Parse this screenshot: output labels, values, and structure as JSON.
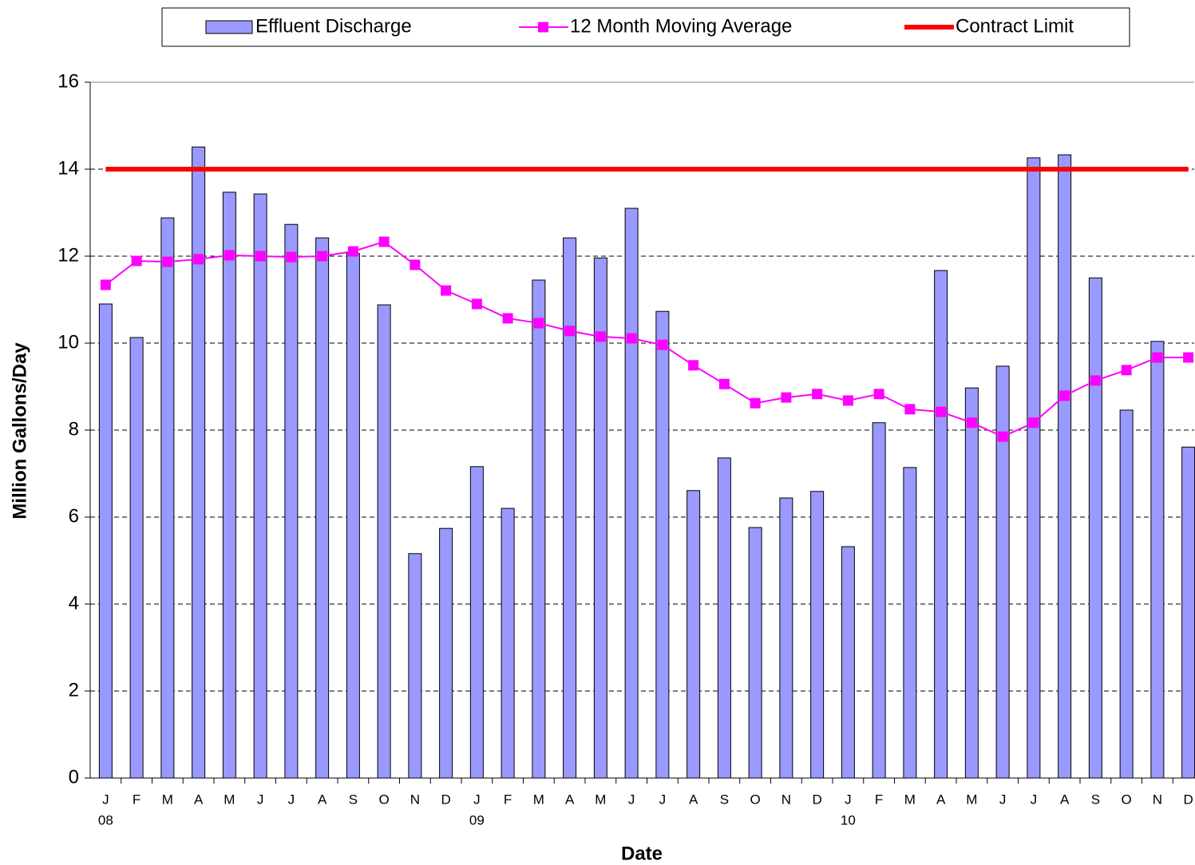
{
  "chart_data": {
    "type": "bar",
    "x_label": "Date",
    "y_label": "Million Gallons/Day",
    "categories": [
      "J",
      "F",
      "M",
      "A",
      "M",
      "J",
      "J",
      "A",
      "S",
      "O",
      "N",
      "D",
      "J",
      "F",
      "M",
      "A",
      "M",
      "J",
      "J",
      "A",
      "S",
      "O",
      "N",
      "D",
      "J",
      "F",
      "M",
      "A",
      "M",
      "J",
      "J",
      "A",
      "S",
      "O",
      "N",
      "D"
    ],
    "years": [
      "08",
      "09",
      "10"
    ],
    "ylim": [
      0,
      16
    ],
    "yticks": [
      0,
      2,
      4,
      6,
      8,
      10,
      12,
      14,
      16
    ],
    "grid": true,
    "legend": "top",
    "series": [
      {
        "name": "Effluent Discharge",
        "type": "bar",
        "color": "#9999ff",
        "values": [
          10.9,
          10.13,
          12.88,
          14.51,
          13.47,
          13.43,
          12.73,
          12.42,
          12.06,
          10.88,
          5.16,
          5.74,
          7.16,
          6.2,
          11.45,
          12.42,
          11.96,
          13.1,
          10.73,
          6.61,
          7.36,
          5.76,
          6.44,
          6.59,
          5.32,
          8.17,
          7.14,
          11.67,
          8.97,
          9.47,
          14.26,
          14.33,
          11.5,
          8.46,
          10.04,
          7.61
        ]
      },
      {
        "name": "12 Month Moving Average",
        "type": "line",
        "color": "#ff00ff",
        "marker": "square",
        "values": [
          11.34,
          11.89,
          11.87,
          11.93,
          12.02,
          12.0,
          11.98,
          12.0,
          12.11,
          12.33,
          11.8,
          11.21,
          10.9,
          10.57,
          10.46,
          10.28,
          10.15,
          10.11,
          9.96,
          9.49,
          9.06,
          8.62,
          8.75,
          8.83,
          8.68,
          8.83,
          8.48,
          8.42,
          8.17,
          7.85,
          8.17,
          8.79,
          9.14,
          9.38,
          9.67,
          9.67
        ]
      },
      {
        "name": "Contract Limit",
        "type": "line",
        "color": "#ff0000",
        "marker": "none",
        "values": [
          14,
          14,
          14,
          14,
          14,
          14,
          14,
          14,
          14,
          14,
          14,
          14,
          14,
          14,
          14,
          14,
          14,
          14,
          14,
          14,
          14,
          14,
          14,
          14,
          14,
          14,
          14,
          14,
          14,
          14,
          14,
          14,
          14,
          14,
          14,
          14
        ]
      }
    ]
  }
}
